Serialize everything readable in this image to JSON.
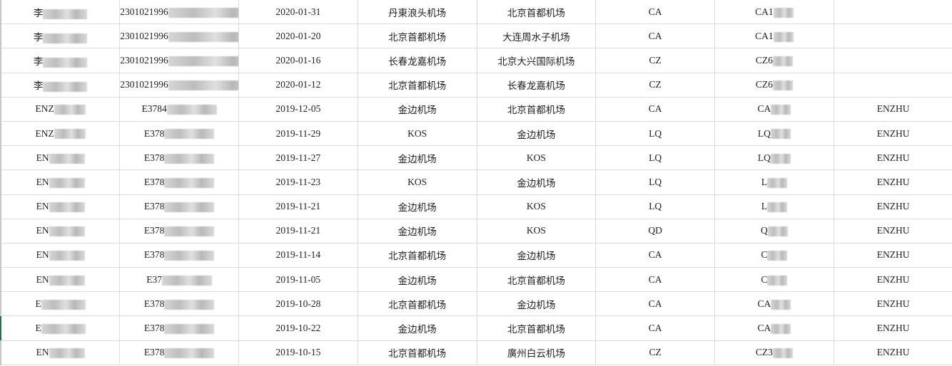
{
  "rows": [
    {
      "name": "李",
      "id": "2301021996",
      "date": "2020-01-31",
      "from": "丹東浪头机场",
      "to": "北京首都机场",
      "airline": "CA",
      "flight": "CA1",
      "passenger": ""
    },
    {
      "name": "李",
      "id": "2301021996",
      "date": "2020-01-20",
      "from": "北京首都机场",
      "to": "大连周水子机场",
      "airline": "CA",
      "flight": "CA1",
      "passenger": ""
    },
    {
      "name": "李",
      "id": "2301021996",
      "date": "2020-01-16",
      "from": "长春龙嘉机场",
      "to": "北京大兴国际机场",
      "airline": "CZ",
      "flight": "CZ6",
      "passenger": ""
    },
    {
      "name": "李",
      "id": "2301021996",
      "date": "2020-01-12",
      "from": "北京首都机场",
      "to": "长春龙嘉机场",
      "airline": "CZ",
      "flight": "CZ6",
      "passenger": ""
    },
    {
      "name": "ENZ",
      "id": "E3784",
      "date": "2019-12-05",
      "from": "金边机场",
      "to": "北京首都机场",
      "airline": "CA",
      "flight": "CA",
      "passenger": "ENZHU"
    },
    {
      "name": "ENZ",
      "id": "E378",
      "date": "2019-11-29",
      "from": "KOS",
      "to": "金边机场",
      "airline": "LQ",
      "flight": "LQ",
      "passenger": "ENZHU"
    },
    {
      "name": "EN",
      "id": "E378",
      "date": "2019-11-27",
      "from": "金边机场",
      "to": "KOS",
      "airline": "LQ",
      "flight": "LQ",
      "passenger": "ENZHU"
    },
    {
      "name": "EN",
      "id": "E378",
      "date": "2019-11-23",
      "from": "KOS",
      "to": "金边机场",
      "airline": "LQ",
      "flight": "L",
      "passenger": "ENZHU"
    },
    {
      "name": "EN",
      "id": "E378",
      "date": "2019-11-21",
      "from": "金边机场",
      "to": "KOS",
      "airline": "LQ",
      "flight": "L",
      "passenger": "ENZHU"
    },
    {
      "name": "EN",
      "id": "E378",
      "date": "2019-11-21",
      "from": "金边机场",
      "to": "KOS",
      "airline": "QD",
      "flight": "Q",
      "passenger": "ENZHU"
    },
    {
      "name": "EN",
      "id": "E378",
      "date": "2019-11-14",
      "from": "北京首都机场",
      "to": "金边机场",
      "airline": "CA",
      "flight": "C",
      "passenger": "ENZHU"
    },
    {
      "name": "EN",
      "id": "E37",
      "date": "2019-11-05",
      "from": "金边机场",
      "to": "北京首都机场",
      "airline": "CA",
      "flight": "C",
      "passenger": "ENZHU"
    },
    {
      "name": "E",
      "id": "E378",
      "date": "2019-10-28",
      "from": "北京首都机场",
      "to": "金边机场",
      "airline": "CA",
      "flight": "CA",
      "passenger": "ENZHU"
    },
    {
      "name": "E",
      "id": "E378",
      "date": "2019-10-22",
      "from": "金边机场",
      "to": "北京首都机场",
      "airline": "CA",
      "flight": "CA",
      "passenger": "ENZHU"
    },
    {
      "name": "EN",
      "id": "E378",
      "date": "2019-10-15",
      "from": "北京首都机场",
      "to": "廣州白云机场",
      "airline": "CZ",
      "flight": "CZ3",
      "passenger": "ENZHU"
    }
  ]
}
